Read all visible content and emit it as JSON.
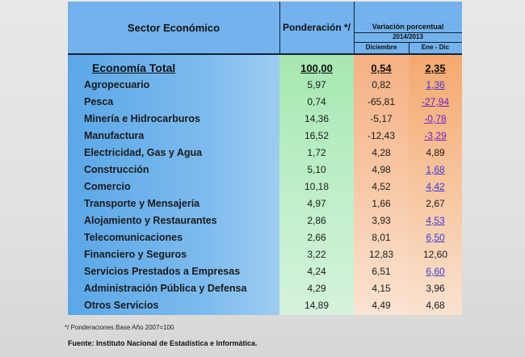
{
  "header": {
    "sector": "Sector Económico",
    "ponderacion": "Ponderación */",
    "variacion": "Variación porcentual",
    "periodo": "2014/2013",
    "diciembre": "Diciembre",
    "ene_dic": "Ene - Dic"
  },
  "total": {
    "label": "Economía Total",
    "ponderacion": "100,00",
    "diciembre": "0,54",
    "ene_dic": "2,35"
  },
  "rows": [
    {
      "label": "Agropecuario",
      "ponderacion": "5,97",
      "diciembre": "0,82",
      "ene_dic": "1,36"
    },
    {
      "label": "Pesca",
      "ponderacion": "0,74",
      "diciembre": "-65,81",
      "ene_dic": "-27,94"
    },
    {
      "label": "Minería e Hidrocarburos",
      "ponderacion": "14,36",
      "diciembre": "-5,17",
      "ene_dic": "-0,78"
    },
    {
      "label": "Manufactura",
      "ponderacion": "16,52",
      "diciembre": "-12,43",
      "ene_dic": "-3,29"
    },
    {
      "label": "Electricidad, Gas y Agua",
      "ponderacion": "1,72",
      "diciembre": "4,28",
      "ene_dic": "4,89"
    },
    {
      "label": "Construcción",
      "ponderacion": "5,10",
      "diciembre": "4,98",
      "ene_dic": "1,68"
    },
    {
      "label": "Comercio",
      "ponderacion": "10,18",
      "diciembre": "4,52",
      "ene_dic": "4,42"
    },
    {
      "label": "Transporte y Mensajería",
      "ponderacion": "4,97",
      "diciembre": "1,66",
      "ene_dic": "2,67"
    },
    {
      "label": "Alojamiento y Restaurantes",
      "ponderacion": "2,86",
      "diciembre": "3,93",
      "ene_dic": "4,53"
    },
    {
      "label": "Telecomunicaciones",
      "ponderacion": "2,66",
      "diciembre": "8,01",
      "ene_dic": "6,50"
    },
    {
      "label": "Financiero y Seguros",
      "ponderacion": "3,22",
      "diciembre": "12,83",
      "ene_dic": "12,60"
    },
    {
      "label": "Servicios Prestados a Empresas",
      "ponderacion": "4,24",
      "diciembre": "6,51",
      "ene_dic": "6,60"
    },
    {
      "label": "Administración Pública y Defensa",
      "ponderacion": "4,29",
      "diciembre": "4,15",
      "ene_dic": "3,96"
    },
    {
      "label": "Otros Servicios",
      "ponderacion": "14,89",
      "diciembre": "4,49",
      "ene_dic": "4,68"
    }
  ],
  "footnote": "*/ Ponderaciones Base Año  2007=100",
  "source": "Fuente: Instituto Nacional de Estadística e Informática."
}
